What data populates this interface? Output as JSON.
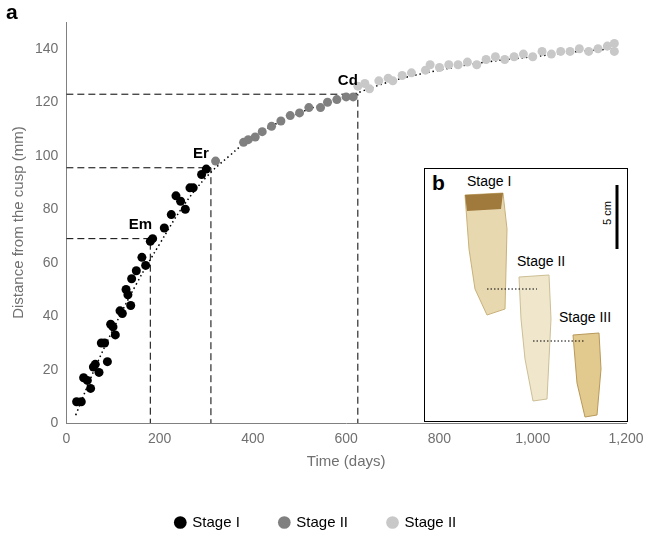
{
  "chart_data": {
    "type": "scatter",
    "panel": "a",
    "x_label": "Time (days)",
    "y_label": "Distance from the cusp (mm)",
    "xlim": [
      0,
      1200
    ],
    "xticks": [
      0,
      200,
      400,
      600,
      800,
      {
        "value": 1000,
        "label": "1,000"
      },
      {
        "value": 1200,
        "label": "1,200"
      }
    ],
    "ylim": [
      0,
      150
    ],
    "yticks": [
      0,
      20,
      40,
      60,
      80,
      100,
      120,
      140
    ],
    "grid": false,
    "legend": "bottom",
    "series": [
      {
        "name": "Stage I",
        "color": "#000000",
        "marker": "circle",
        "x": [
          22,
          32,
          37,
          45,
          52,
          58,
          62,
          70,
          75,
          82,
          88,
          95,
          100,
          105,
          115,
          120,
          128,
          132,
          138,
          140,
          150,
          162,
          170,
          180,
          185,
          210,
          225,
          235,
          245,
          255,
          265,
          272,
          290,
          300
        ],
        "values": [
          8,
          8,
          17,
          16,
          13,
          21,
          22,
          19,
          30,
          30,
          23,
          37,
          36,
          33,
          42,
          41,
          50,
          48,
          44,
          54,
          57,
          62,
          59,
          68,
          69,
          73,
          78,
          85,
          83,
          80,
          88,
          88,
          93,
          95
        ]
      },
      {
        "name": "Stage II",
        "color": "#808080",
        "marker": "circle",
        "x": [
          320,
          380,
          390,
          405,
          420,
          440,
          460,
          480,
          500,
          520,
          545,
          560,
          580,
          600,
          615
        ],
        "values": [
          98,
          105,
          106,
          107,
          109,
          111,
          113,
          115,
          116,
          118,
          118,
          120,
          121,
          122,
          122
        ]
      },
      {
        "name": "Stage II",
        "color": "#c8c8c8",
        "marker": "circle",
        "x": [
          625,
          640,
          650,
          670,
          690,
          700,
          720,
          740,
          770,
          780,
          800,
          820,
          840,
          860,
          880,
          900,
          920,
          940,
          960,
          980,
          1000,
          1020,
          1040,
          1060,
          1080,
          1100,
          1120,
          1140,
          1160,
          1175,
          1175
        ],
        "values": [
          126,
          127,
          125,
          128,
          129,
          128,
          130,
          131,
          132,
          134,
          133,
          134,
          134,
          135,
          134,
          136,
          137,
          136,
          137,
          138,
          137,
          139,
          138,
          139,
          139,
          140,
          139,
          140,
          141,
          142,
          139
        ]
      }
    ],
    "fit": {
      "line_style": "dotted",
      "color": "#000000",
      "x": [
        20,
        60,
        100,
        150,
        200,
        250,
        300,
        350,
        400,
        500,
        600,
        700,
        800,
        900,
        1000,
        1100,
        1180
      ],
      "values": [
        3,
        20,
        35,
        52,
        67,
        81,
        92,
        100,
        107,
        116,
        122,
        128,
        132,
        135,
        137,
        139,
        140
      ]
    },
    "annotations": [
      {
        "text": "Em",
        "x": 180,
        "y": 69
      },
      {
        "text": "Er",
        "x": 310,
        "y": 95.5
      },
      {
        "text": "Cd",
        "x": 625,
        "y": 123
      }
    ]
  },
  "inset": {
    "panel": "b",
    "labels": [
      "Stage I",
      "Stage II",
      "Stage III"
    ],
    "scale_bar": "5 cm"
  }
}
